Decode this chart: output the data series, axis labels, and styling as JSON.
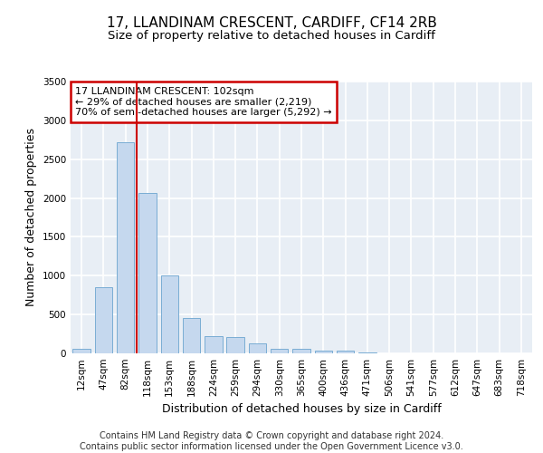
{
  "title_line1": "17, LLANDINAM CRESCENT, CARDIFF, CF14 2RB",
  "title_line2": "Size of property relative to detached houses in Cardiff",
  "xlabel": "Distribution of detached houses by size in Cardiff",
  "ylabel": "Number of detached properties",
  "categories": [
    "12sqm",
    "47sqm",
    "82sqm",
    "118sqm",
    "153sqm",
    "188sqm",
    "224sqm",
    "259sqm",
    "294sqm",
    "330sqm",
    "365sqm",
    "400sqm",
    "436sqm",
    "471sqm",
    "506sqm",
    "541sqm",
    "577sqm",
    "612sqm",
    "647sqm",
    "683sqm",
    "718sqm"
  ],
  "values": [
    60,
    850,
    2720,
    2060,
    1000,
    450,
    220,
    210,
    130,
    60,
    55,
    35,
    30,
    10,
    0,
    0,
    0,
    0,
    0,
    0,
    0
  ],
  "bar_color": "#c5d8ee",
  "bar_edge_color": "#7aadd4",
  "vline_color": "#cc0000",
  "vline_x_index": 2.5,
  "annotation_title": "17 LLANDINAM CRESCENT: 102sqm",
  "annotation_line1": "← 29% of detached houses are smaller (2,219)",
  "annotation_line2": "70% of semi-detached houses are larger (5,292) →",
  "annotation_box_color": "#cc0000",
  "ylim": [
    0,
    3500
  ],
  "yticks": [
    0,
    500,
    1000,
    1500,
    2000,
    2500,
    3000,
    3500
  ],
  "background_color": "#e8eef5",
  "grid_color": "#ffffff",
  "footer_line1": "Contains HM Land Registry data © Crown copyright and database right 2024.",
  "footer_line2": "Contains public sector information licensed under the Open Government Licence v3.0.",
  "title_fontsize": 11,
  "subtitle_fontsize": 9.5,
  "axis_label_fontsize": 9,
  "tick_fontsize": 7.5,
  "annotation_fontsize": 8,
  "footer_fontsize": 7
}
